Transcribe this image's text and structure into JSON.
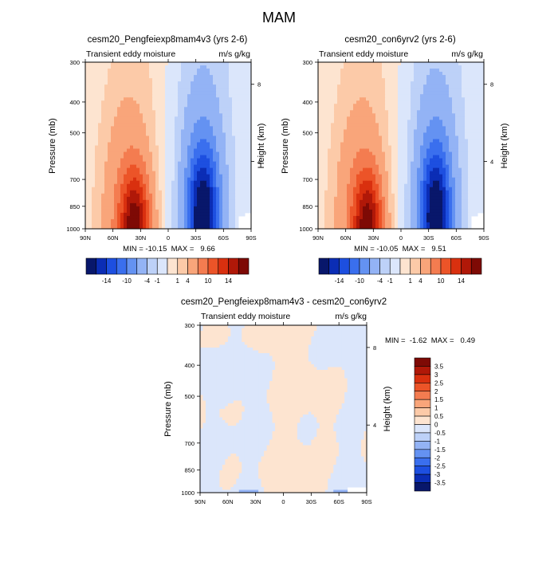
{
  "figure": {
    "title": "MAM"
  },
  "palette": {
    "neg": [
      "#08176b",
      "#0b2db5",
      "#1d4fe0",
      "#3a6fee",
      "#6492f2",
      "#93b3f5",
      "#bdd1f8",
      "#dbe6fb"
    ],
    "pos": [
      "#fde4d0",
      "#fccaa8",
      "#f9a57a",
      "#f47c50",
      "#ec5428",
      "#d9300f",
      "#b01808",
      "#7e0a05"
    ]
  },
  "chart_data": [
    {
      "type": "heatmap",
      "title": "cesm20_Pengfeiexp8mam4v3 (yrs 2-6)",
      "subtitle_left": "Transient eddy moisture",
      "subtitle_right": "m/s g/kg",
      "xlabel": "",
      "ylabel": "Pressure (mb)",
      "y2label": "Height (km)",
      "x_ticks": [
        "90N",
        "60N",
        "30N",
        "0",
        "30S",
        "60S",
        "90S"
      ],
      "y_ticks": [
        "300",
        "400",
        "500",
        "700",
        "850",
        "1000"
      ],
      "y2_ticks": [
        "8",
        "4"
      ],
      "stats": "MIN = -10.15  MAX =   9.66",
      "min": -10.15,
      "max": 9.66,
      "colorbar_levels": [
        "-14",
        "-10",
        "-4",
        "-1",
        "1",
        "4",
        "10",
        "14"
      ]
    },
    {
      "type": "heatmap",
      "title": "cesm20_con6yrv2 (yrs 2-6)",
      "subtitle_left": "Transient eddy moisture",
      "subtitle_right": "m/s g/kg",
      "xlabel": "",
      "ylabel": "Pressure (mb)",
      "y2label": "Height (km)",
      "x_ticks": [
        "90N",
        "60N",
        "30N",
        "0",
        "30S",
        "60S",
        "90S"
      ],
      "y_ticks": [
        "300",
        "400",
        "500",
        "700",
        "850",
        "1000"
      ],
      "y2_ticks": [
        "8",
        "4"
      ],
      "stats": "MIN = -10.05  MAX =   9.51",
      "min": -10.05,
      "max": 9.51,
      "colorbar_levels": [
        "-14",
        "-10",
        "-4",
        "-1",
        "1",
        "4",
        "10",
        "14"
      ]
    },
    {
      "type": "heatmap",
      "title": "cesm20_Pengfeiexp8mam4v3 - cesm20_con6yrv2",
      "subtitle_left": "Transient eddy moisture",
      "subtitle_right": "m/s g/kg",
      "xlabel": "",
      "ylabel": "Pressure (mb)",
      "y2label": "Height (km)",
      "x_ticks": [
        "90N",
        "60N",
        "30N",
        "0",
        "30S",
        "60S",
        "90S"
      ],
      "y_ticks": [
        "300",
        "400",
        "500",
        "700",
        "850",
        "1000"
      ],
      "y2_ticks": [
        "8",
        "4"
      ],
      "stats": "MIN =  -1.62  MAX =   0.49",
      "min": -1.62,
      "max": 0.49,
      "colorbar_levels": [
        "3.5",
        "3",
        "2.5",
        "2",
        "1.5",
        "1",
        "0.5",
        "0",
        "-0.5",
        "-1",
        "-1.5",
        "-2",
        "-2.5",
        "-3",
        "-3.5"
      ]
    }
  ]
}
